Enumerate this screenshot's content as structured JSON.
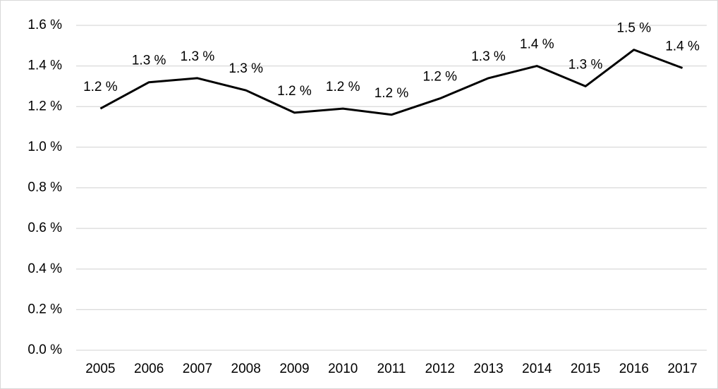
{
  "chart_data": {
    "type": "line",
    "categories": [
      "2005",
      "2006",
      "2007",
      "2008",
      "2009",
      "2010",
      "2011",
      "2012",
      "2013",
      "2014",
      "2015",
      "2016",
      "2017"
    ],
    "values": [
      1.19,
      1.32,
      1.34,
      1.28,
      1.17,
      1.19,
      1.16,
      1.24,
      1.34,
      1.4,
      1.3,
      1.48,
      1.39
    ],
    "value_labels": [
      "1.2 %",
      "1.3 %",
      "1.3 %",
      "1.3 %",
      "1.2 %",
      "1.2 %",
      "1.2 %",
      "1.2 %",
      "1.3 %",
      "1.4 %",
      "1.3 %",
      "1.5 %",
      "1.4 %"
    ],
    "color": "#000000",
    "ylim": [
      0,
      1.6
    ],
    "yticks": [
      {
        "value": 0,
        "label": "0.0 %"
      },
      {
        "value": 0.2,
        "label": "0.2 %"
      },
      {
        "value": 0.4,
        "label": "0.4 %"
      },
      {
        "value": 0.6,
        "label": "0.6 %"
      },
      {
        "value": 0.8,
        "label": "0.8 %"
      },
      {
        "value": 1.0,
        "label": "1.0 %"
      },
      {
        "value": 1.2,
        "label": "1.2 %"
      },
      {
        "value": 1.4,
        "label": "1.4 %"
      },
      {
        "value": 1.6,
        "label": "1.6 %"
      }
    ],
    "grid": true
  }
}
